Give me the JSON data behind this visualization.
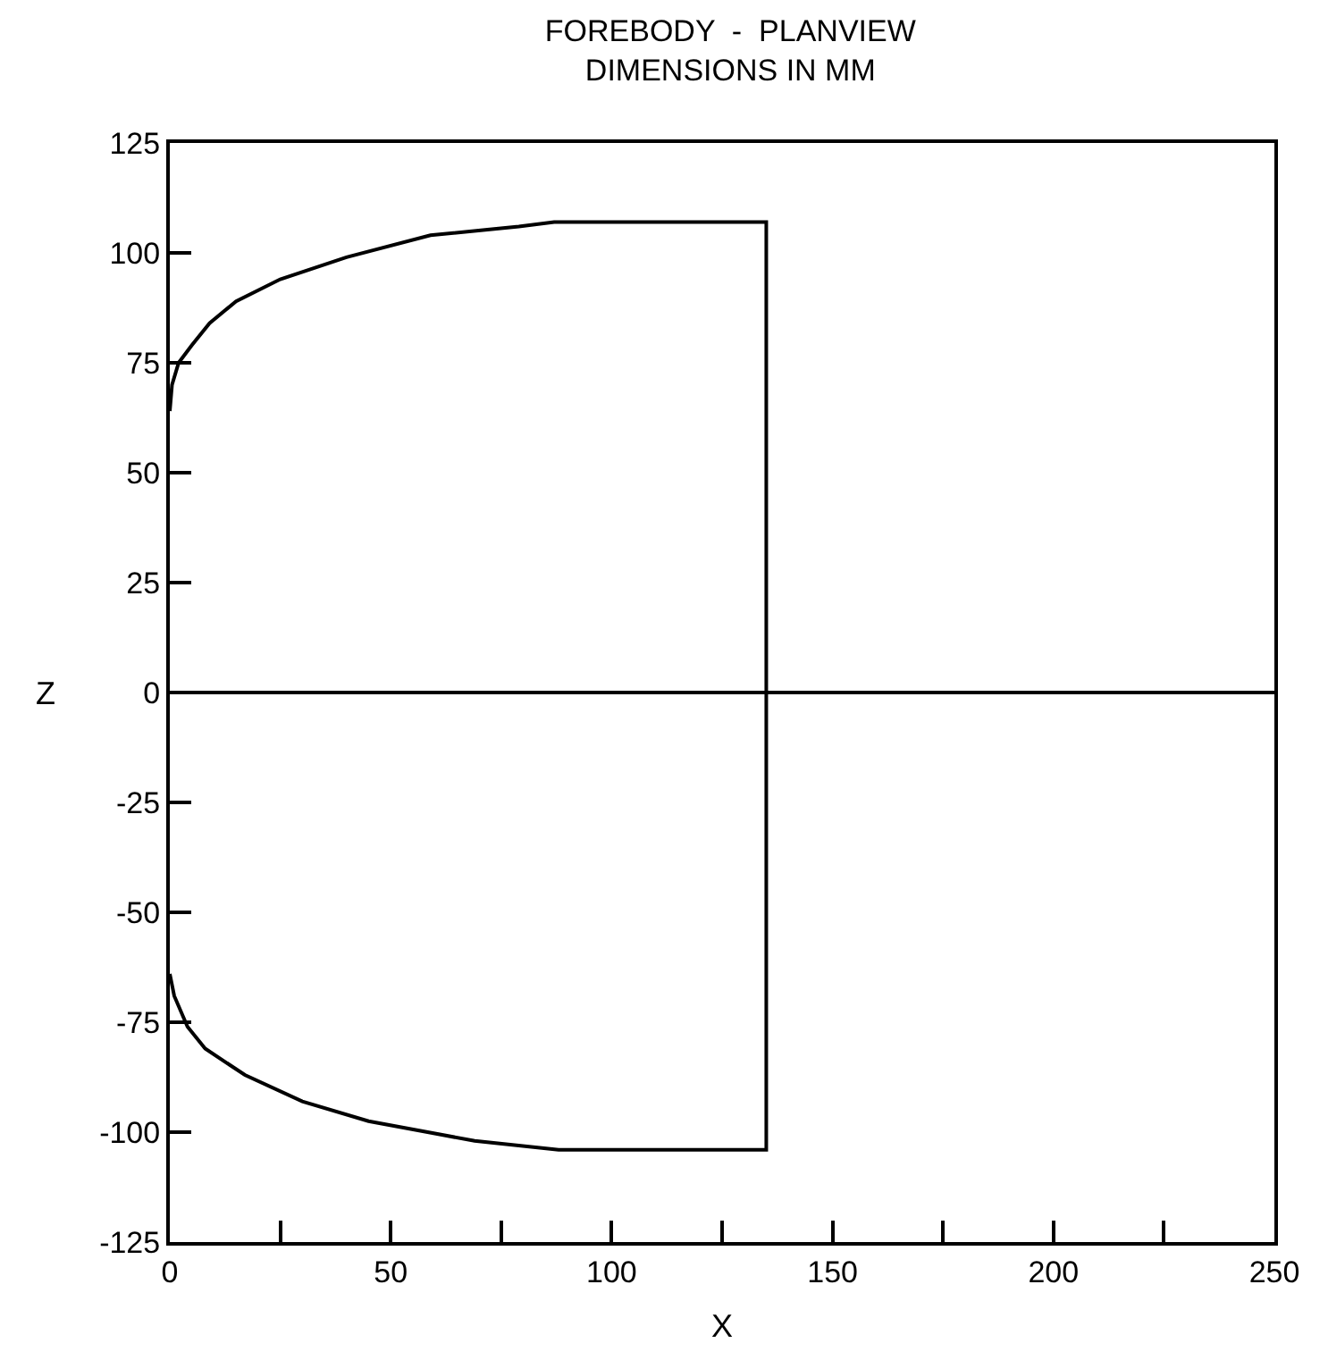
{
  "chart_data": {
    "type": "line",
    "title": "FOREBODY  -  PLANVIEW",
    "subtitle": "DIMENSIONS IN MM",
    "xlabel": "X",
    "ylabel": "Z",
    "series": [
      {
        "color": "#000000",
        "x": [
          0,
          0.5,
          2,
          5,
          9,
          15,
          25,
          40,
          59,
          79,
          87,
          95,
          135,
          135,
          135,
          95,
          88,
          69,
          45,
          30,
          17,
          8,
          4,
          1,
          0
        ],
        "values": [
          64,
          70,
          75,
          79,
          84,
          89,
          94,
          99,
          104,
          106,
          107,
          107,
          107,
          0,
          -104,
          -104,
          -104,
          -102,
          -97.5,
          -93,
          -87,
          -81,
          -76,
          -69,
          -64
        ]
      },
      {
        "color": "#000000",
        "x": [
          0,
          250
        ],
        "values": [
          0,
          0
        ]
      }
    ],
    "xlim": [
      0,
      250
    ],
    "ylim": [
      -125,
      125
    ],
    "xticks": [
      0,
      {
        "value": 25,
        "label": null
      },
      50,
      {
        "value": 75,
        "label": null
      },
      100,
      {
        "value": 125,
        "label": null
      },
      150,
      {
        "value": 175,
        "label": null
      },
      200,
      {
        "value": 225,
        "label": null
      },
      250
    ],
    "yticks": [
      -125,
      -100,
      -75,
      -50,
      -25,
      0,
      25,
      50,
      75,
      100,
      125
    ],
    "line_style": "solid",
    "marker": "none"
  }
}
